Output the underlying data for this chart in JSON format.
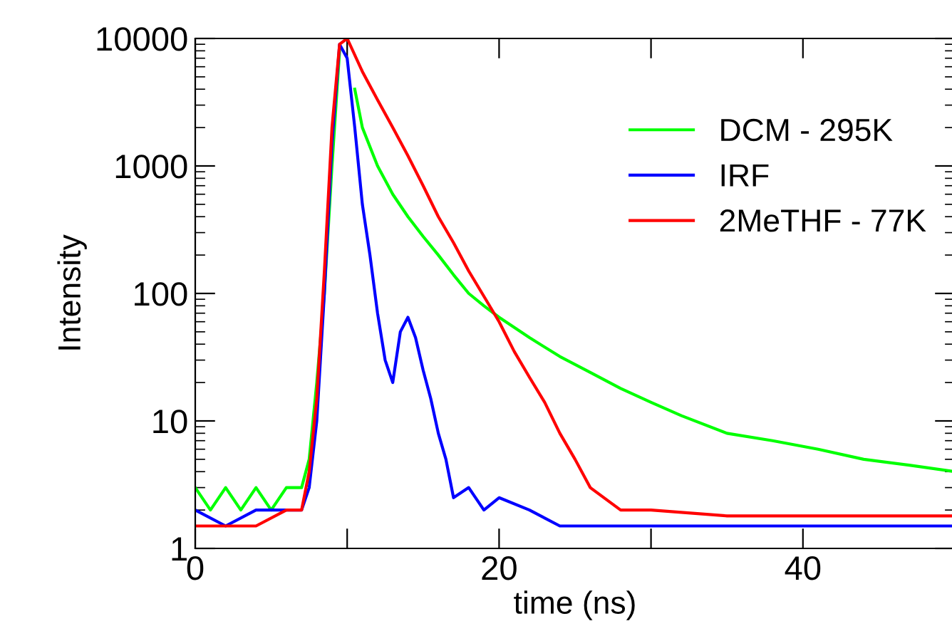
{
  "chart_data": {
    "type": "line",
    "xlabel": "time (ns)",
    "ylabel": "Intensity",
    "log": "y",
    "xlim": [
      0,
      50
    ],
    "ylim": [
      1,
      10000
    ],
    "xticks": [
      0,
      {
        "value": 10,
        "label": null
      },
      20,
      {
        "value": 30,
        "label": null
      },
      40
    ],
    "yticks": [
      1,
      10,
      100,
      1000,
      10000
    ],
    "grid": false,
    "legend": "top right",
    "marker": "none",
    "line_style": "solid",
    "series": [
      {
        "name": "DCM - 295K",
        "color": "#00ff00",
        "x": [
          0,
          1,
          2,
          3,
          4,
          5,
          6,
          7,
          7.5,
          8,
          8.5,
          9,
          9.5,
          10,
          10.5,
          11,
          12,
          13,
          14,
          15,
          16,
          17,
          18,
          19,
          20,
          22,
          24,
          26,
          28,
          30,
          32,
          35,
          38,
          41,
          44,
          47,
          50
        ],
        "values": [
          3,
          2,
          3,
          2,
          3,
          2,
          3,
          3,
          5,
          20,
          100,
          1000,
          8000,
          null,
          4000,
          2000,
          1000,
          600,
          400,
          280,
          200,
          140,
          100,
          80,
          65,
          45,
          32,
          24,
          18,
          14,
          11,
          8,
          7,
          6,
          5,
          4.5,
          4
        ]
      },
      {
        "name": "IRF",
        "color": "#0000ff",
        "x": [
          0,
          2,
          4,
          6,
          7,
          7.5,
          8,
          8.5,
          9,
          9.5,
          10,
          10.5,
          11,
          11.5,
          12,
          12.5,
          13,
          13.5,
          14,
          14.5,
          15,
          15.5,
          16,
          16.5,
          17,
          18,
          19,
          20,
          22,
          24,
          26,
          30,
          35,
          40,
          45,
          50
        ],
        "values": [
          2,
          1.5,
          2,
          2,
          2,
          3,
          10,
          100,
          1500,
          9000,
          7000,
          2000,
          500,
          200,
          70,
          30,
          20,
          50,
          65,
          45,
          25,
          15,
          8,
          5,
          2.5,
          3,
          2,
          2.5,
          2,
          1.5,
          1.5,
          1.5,
          1.5,
          1.5,
          1.5,
          1.5
        ]
      },
      {
        "name": "2MeTHF - 77K",
        "color": "#ff0000",
        "x": [
          0,
          2,
          4,
          6,
          7,
          7.5,
          8,
          8.5,
          9,
          9.5,
          10,
          11,
          12,
          13,
          14,
          15,
          16,
          17,
          18,
          19,
          20,
          21,
          22,
          23,
          24,
          25,
          26,
          28,
          30,
          35,
          40,
          45,
          50
        ],
        "values": [
          1.5,
          1.5,
          1.5,
          2,
          2,
          4,
          15,
          150,
          2000,
          9000,
          10000,
          5500,
          3300,
          2000,
          1200,
          700,
          400,
          250,
          150,
          95,
          60,
          35,
          22,
          14,
          8,
          5,
          3,
          2,
          2,
          1.8,
          1.8,
          1.8,
          1.8
        ]
      }
    ]
  }
}
